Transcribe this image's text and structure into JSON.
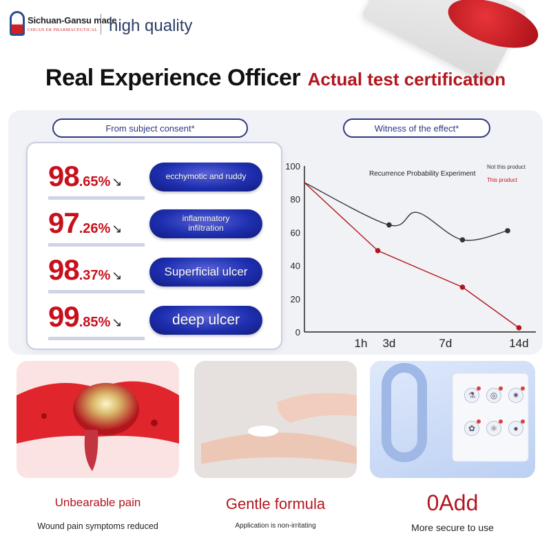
{
  "header": {
    "brand_name": "Sichuan-Gansu made",
    "brand_sub": "CHUAN ER PHARMACEUTICAL",
    "brand_tag": "high quality"
  },
  "headline": {
    "main": "Real Experience Officer",
    "sub": "Actual test certification"
  },
  "left_panel": {
    "pill_label": "From subject consent*",
    "stats": [
      {
        "big": "98",
        "small": ".65%",
        "label": "ecchymotic and ruddy"
      },
      {
        "big": "97",
        "small": ".26%",
        "label": "inflammatory infiltration"
      },
      {
        "big": "98",
        "small": ".37%",
        "label": "Superficial ulcer"
      },
      {
        "big": "99",
        "small": ".85%",
        "label": "deep ulcer"
      }
    ],
    "arrow": "↘"
  },
  "right_panel": {
    "pill_label": "Witness of the effect*"
  },
  "chart_data": {
    "type": "line",
    "title": "Recurrence Probability Experiment",
    "xlabel": "",
    "ylabel": "",
    "ylim": [
      0,
      100
    ],
    "yticks": [
      "100",
      "80",
      "60",
      "40",
      "20",
      "0"
    ],
    "xticks": [
      {
        "label": "1h",
        "x": 0.5
      },
      {
        "label": "3d",
        "x": 1.0
      },
      {
        "label": "7d",
        "x": 2.0
      },
      {
        "label": "14d",
        "x": 3.3
      }
    ],
    "xlim": [
      -0.5,
      3.6
    ],
    "series": [
      {
        "name": "Not this product",
        "color": "#333333",
        "points": [
          [
            -0.5,
            90
          ],
          [
            1.0,
            64.5
          ],
          [
            1.5,
            72
          ],
          [
            2.3,
            55.5
          ],
          [
            3.1,
            61
          ]
        ],
        "markers": [
          [
            1.0,
            64.5
          ],
          [
            2.3,
            55.5
          ],
          [
            3.1,
            61
          ]
        ]
      },
      {
        "name": "This product",
        "color": "#b3151d",
        "points": [
          [
            -0.5,
            90
          ],
          [
            0.8,
            49
          ],
          [
            2.3,
            27
          ],
          [
            3.3,
            2.5
          ]
        ],
        "markers": [
          [
            0.8,
            49
          ],
          [
            2.3,
            27
          ],
          [
            3.3,
            2.5
          ]
        ]
      }
    ]
  },
  "cards": [
    {
      "title": "Unbearable pain",
      "sub": "Wound pain symptoms reduced"
    },
    {
      "title": "Gentle formula",
      "sub": "Application is non-irritating"
    },
    {
      "title": "0Add",
      "sub": "More secure to use"
    }
  ],
  "colors": {
    "brand_red": "#b3151d",
    "navy": "#2b3980",
    "stat_red": "#c8101c"
  }
}
